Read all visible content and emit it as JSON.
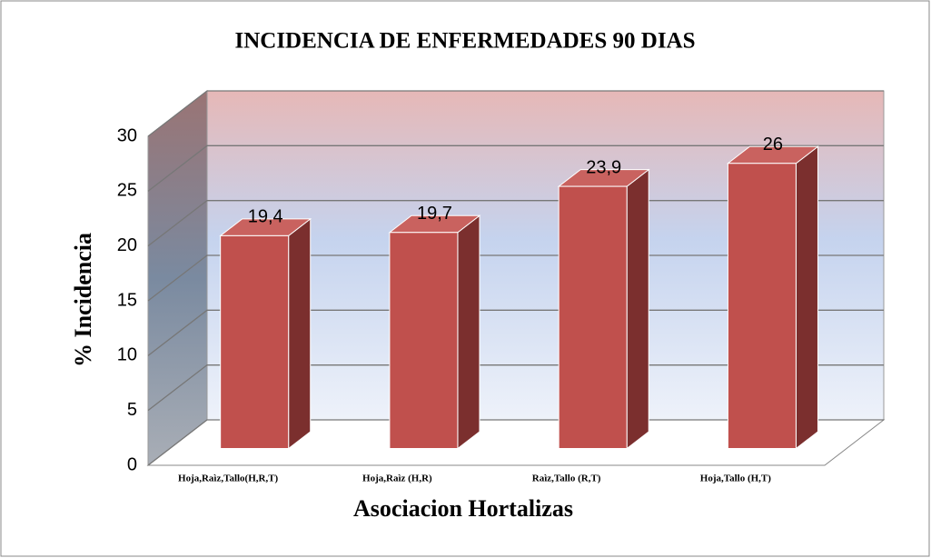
{
  "chart_data": {
    "type": "bar3d",
    "title": "INCIDENCIA DE ENFERMEDADES 90 DIAS",
    "x_label": "Asociacion Hortalizas",
    "y_label": "% Incidencia",
    "categories": [
      "Hoja,Raìz,Tallo(H,R,T)",
      "Hoja,Raìz (H,R)",
      "Raìz,Tallo (R,T)",
      "Hoja,Tallo (H,T)"
    ],
    "values": [
      19.4,
      19.7,
      23.9,
      26
    ],
    "value_labels": [
      "19,4",
      "19,7",
      "23,9",
      "26"
    ],
    "color": "#c0504d",
    "ylim": [
      0,
      30
    ],
    "yticks": [
      0,
      5,
      10,
      15,
      20,
      25,
      30
    ],
    "grid": true
  }
}
